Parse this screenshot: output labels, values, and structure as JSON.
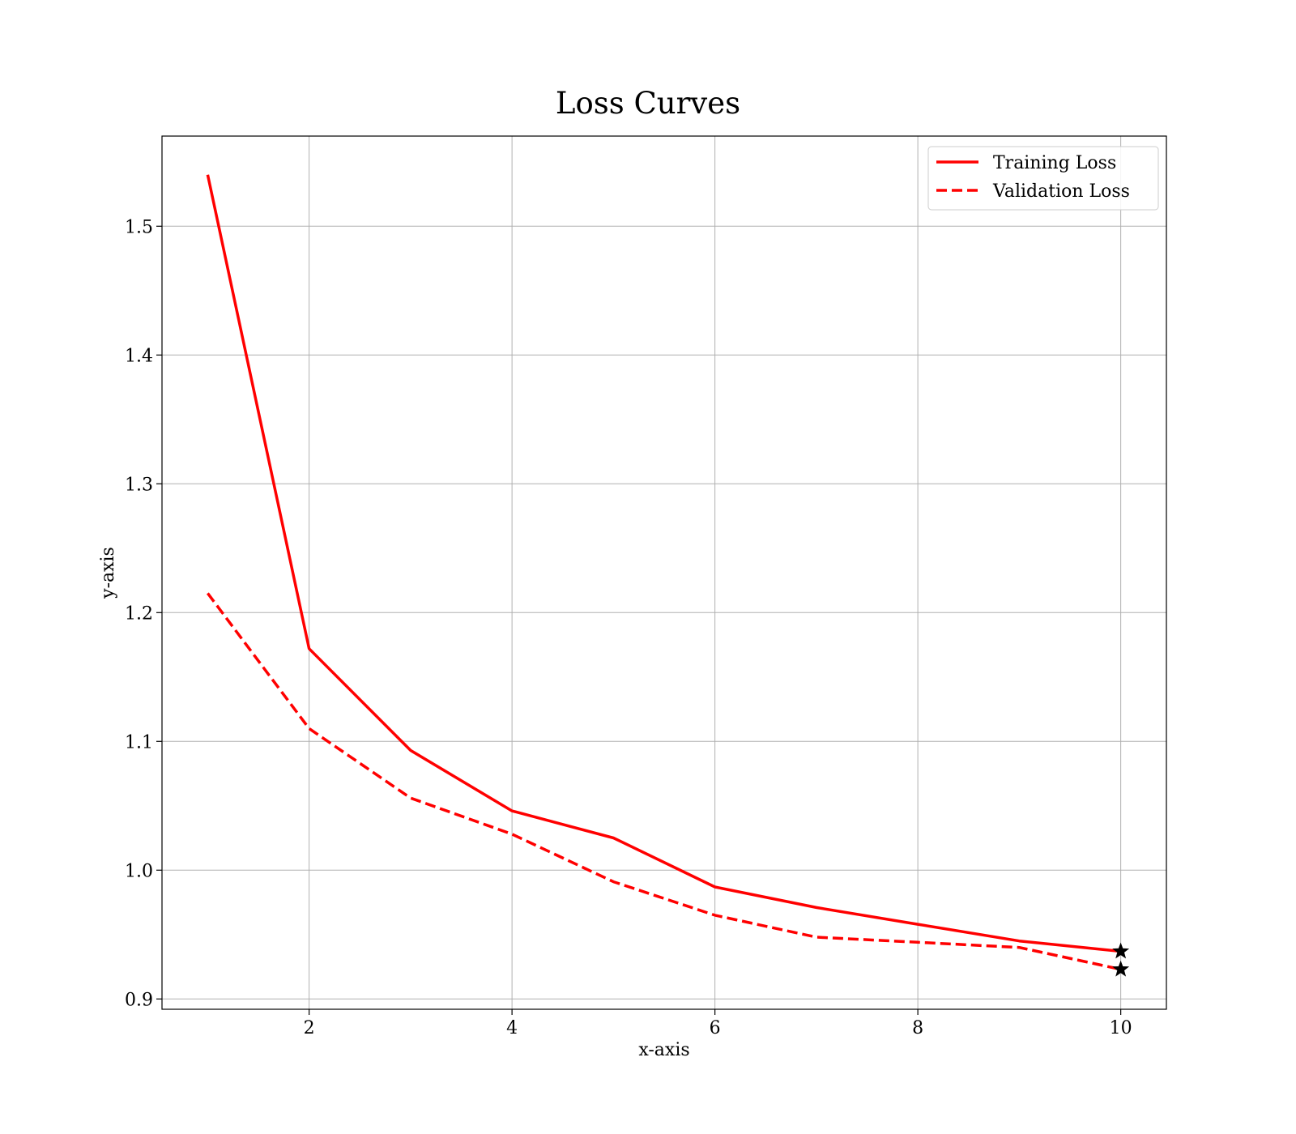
{
  "chart_data": {
    "type": "line",
    "title": "Loss Curves",
    "xlabel": "x-axis",
    "ylabel": "y-axis",
    "xlim": [
      0.55,
      10.45
    ],
    "ylim": [
      0.892,
      1.57
    ],
    "xticks": [
      2,
      4,
      6,
      8,
      10
    ],
    "yticks": [
      0.9,
      1.0,
      1.1,
      1.2,
      1.3,
      1.4,
      1.5
    ],
    "xtick_labels": [
      "2",
      "4",
      "6",
      "8",
      "10"
    ],
    "ytick_labels": [
      "0.9",
      "1.0",
      "1.1",
      "1.2",
      "1.3",
      "1.4",
      "1.5"
    ],
    "grid": true,
    "legend_position": "top-right",
    "x": [
      1,
      2,
      3,
      4,
      5,
      6,
      7,
      8,
      9,
      10
    ],
    "series": [
      {
        "name": "Training Loss",
        "style": "solid",
        "color": "#ff0000",
        "values": [
          1.54,
          1.172,
          1.093,
          1.046,
          1.025,
          0.987,
          0.971,
          0.958,
          0.945,
          0.937
        ]
      },
      {
        "name": "Validation Loss",
        "style": "dashed",
        "color": "#ff0000",
        "values": [
          1.215,
          1.11,
          1.056,
          1.028,
          0.991,
          0.965,
          0.948,
          0.944,
          0.94,
          0.923
        ]
      }
    ],
    "end_markers": {
      "shape": "star",
      "color": "#000000"
    }
  }
}
